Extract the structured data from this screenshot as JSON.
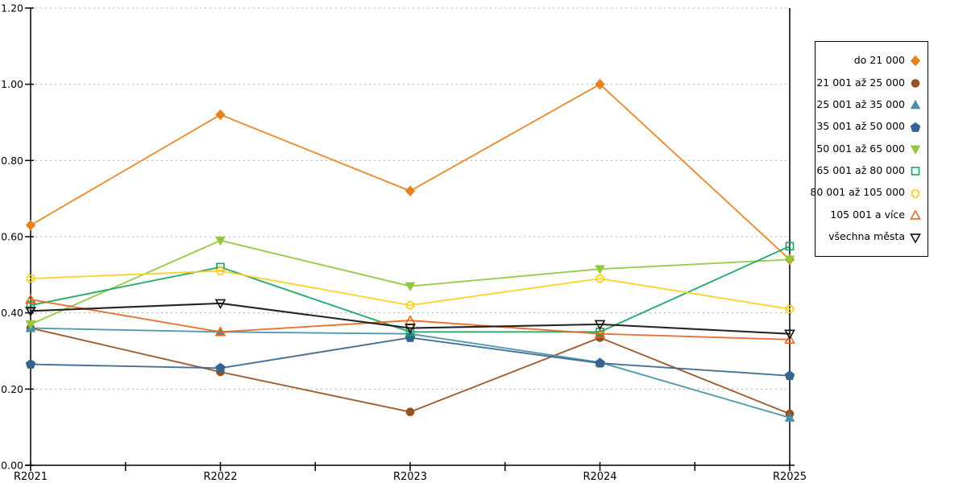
{
  "chart_data": {
    "type": "line",
    "title": "",
    "xlabel": "",
    "ylabel": "",
    "categories": [
      "R2021",
      "R2022",
      "R2023",
      "R2024",
      "R2025"
    ],
    "y_tick_labels": [
      "0.00",
      "0.20",
      "0.40",
      "0.60",
      "0.80",
      "1.00",
      "1.20"
    ],
    "ylim": [
      0,
      1.2
    ],
    "grid": "horizontal-dashed",
    "legend_position": "right-outside",
    "colors": {
      "grid": "#b0b0b0",
      "axis": "#000000",
      "background": "#ffffff"
    },
    "series": [
      {
        "name": "do 21 000",
        "marker": "diamond",
        "style": "filled",
        "color": "#e8821f",
        "values": [
          0.63,
          0.92,
          0.72,
          1.0,
          0.54
        ]
      },
      {
        "name": "21 001 až 25 000",
        "marker": "circle",
        "style": "filled",
        "color": "#965123",
        "values": [
          0.36,
          0.245,
          0.14,
          0.335,
          0.135
        ]
      },
      {
        "name": "25 001 až 35 000",
        "marker": "triangle-up",
        "style": "filled",
        "color": "#4591a7",
        "values": [
          0.36,
          0.35,
          0.345,
          0.27,
          0.125
        ]
      },
      {
        "name": "35 001 až 50 000",
        "marker": "pentagon",
        "style": "filled",
        "color": "#35658f",
        "values": [
          0.265,
          0.255,
          0.335,
          0.268,
          0.235
        ]
      },
      {
        "name": "50 001 až 65 000",
        "marker": "triangle-down",
        "style": "filled",
        "color": "#92c83f",
        "values": [
          0.37,
          0.59,
          0.47,
          0.515,
          0.54
        ]
      },
      {
        "name": "65 001 až 80 000",
        "marker": "square",
        "style": "open",
        "color": "#16a45f",
        "values": [
          0.42,
          0.52,
          0.35,
          0.35,
          0.575
        ]
      },
      {
        "name": "80 001 až 105 000",
        "marker": "circle-rays",
        "style": "open",
        "color": "#fdcf1e",
        "values": [
          0.49,
          0.51,
          0.42,
          0.49,
          0.41
        ]
      },
      {
        "name": "105 001 a více",
        "marker": "triangle-up",
        "style": "open",
        "color": "#e8661e",
        "values": [
          0.435,
          0.35,
          0.38,
          0.345,
          0.33
        ]
      },
      {
        "name": "všechna města",
        "marker": "triangle-down",
        "style": "open",
        "color": "#111111",
        "values": [
          0.405,
          0.425,
          0.36,
          0.37,
          0.345
        ]
      }
    ]
  }
}
